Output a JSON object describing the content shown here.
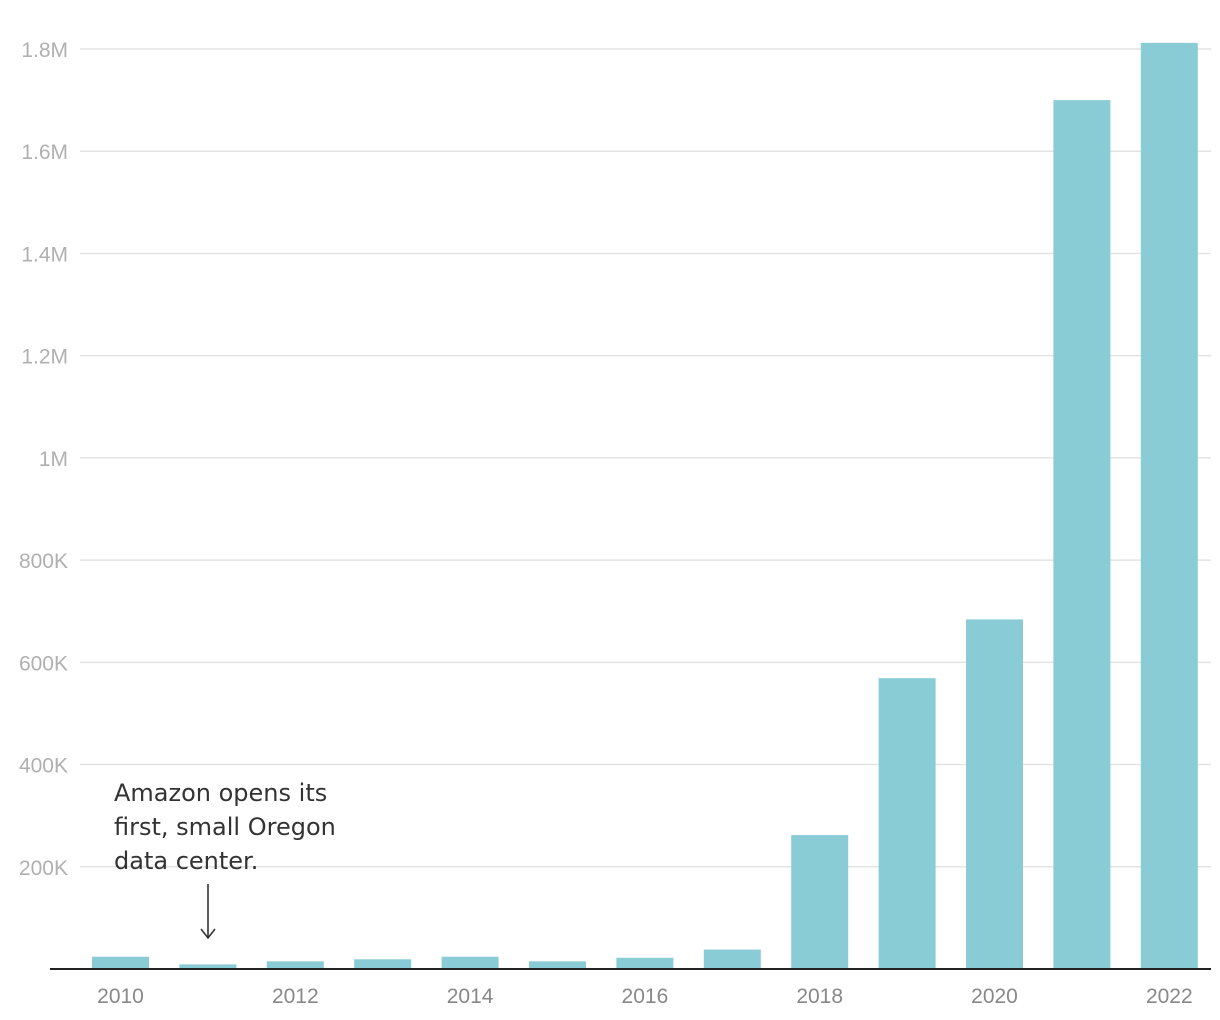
{
  "chart_data": {
    "type": "bar",
    "title": "",
    "xlabel": "",
    "ylabel": "",
    "categories": [
      "2010",
      "2011",
      "2012",
      "2013",
      "2014",
      "2015",
      "2016",
      "2017",
      "2018",
      "2019",
      "2020",
      "2021",
      "2022"
    ],
    "x_tick_labels": [
      "2010",
      "2012",
      "2014",
      "2016",
      "2018",
      "2020",
      "2022"
    ],
    "values": [
      24000,
      9000,
      15000,
      19000,
      24000,
      15000,
      22000,
      38000,
      262000,
      569000,
      684000,
      1700000,
      1812000
    ],
    "ylim": [
      0,
      1800000
    ],
    "y_ticks": [
      {
        "value": 200000,
        "label": "200K"
      },
      {
        "value": 400000,
        "label": "400K"
      },
      {
        "value": 600000,
        "label": "600K"
      },
      {
        "value": 800000,
        "label": "800K"
      },
      {
        "value": 1000000,
        "label": "1M"
      },
      {
        "value": 1200000,
        "label": "1.2M"
      },
      {
        "value": 1400000,
        "label": "1.4M"
      },
      {
        "value": 1600000,
        "label": "1.6M"
      },
      {
        "value": 1800000,
        "label": "1.8M"
      }
    ],
    "grid": true,
    "bar_color": "#89ccd6",
    "annotation": {
      "category": "2011",
      "lines": [
        "Amazon opens its",
        "first, small Oregon",
        "data center."
      ]
    }
  }
}
